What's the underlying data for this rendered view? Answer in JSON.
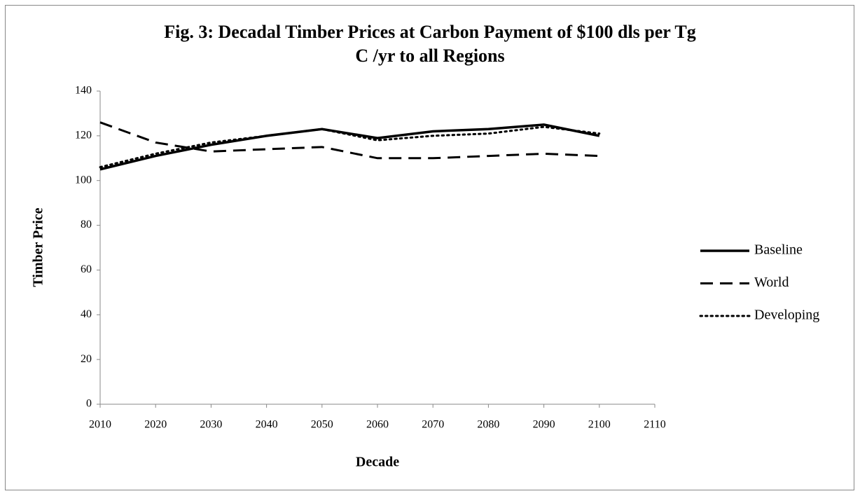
{
  "chart_data": {
    "type": "line",
    "title": [
      "Fig. 3: Decadal  Timber Prices at Carbon Payment of $100 dls per Tg",
      "C /yr to all Regions"
    ],
    "x_label": "Decade",
    "y_label": "Timber Price",
    "x": [
      2010,
      2020,
      2030,
      2040,
      2050,
      2060,
      2070,
      2080,
      2090,
      2100
    ],
    "series": [
      {
        "name": "Baseline",
        "color": "#000000",
        "dash": "solid",
        "values": [
          105,
          111,
          116,
          120,
          123,
          119,
          122,
          123,
          125,
          120
        ]
      },
      {
        "name": "World",
        "color": "#000000",
        "dash": "dashed",
        "values": [
          126,
          117,
          113,
          114,
          115,
          110,
          110,
          111,
          112,
          111
        ]
      },
      {
        "name": "Developing",
        "color": "#000000",
        "dash": "dotted",
        "values": [
          106,
          112,
          117,
          120,
          123,
          118,
          120,
          121,
          124,
          121
        ]
      }
    ],
    "xlim": [
      2010,
      2110
    ],
    "xticks": [
      2010,
      2020,
      2030,
      2040,
      2050,
      2060,
      2070,
      2080,
      2090,
      2100,
      2110
    ],
    "ylim": [
      0,
      140
    ],
    "yticks": [
      0,
      20,
      40,
      60,
      80,
      100,
      120,
      140
    ],
    "grid": false,
    "legend": "right"
  }
}
